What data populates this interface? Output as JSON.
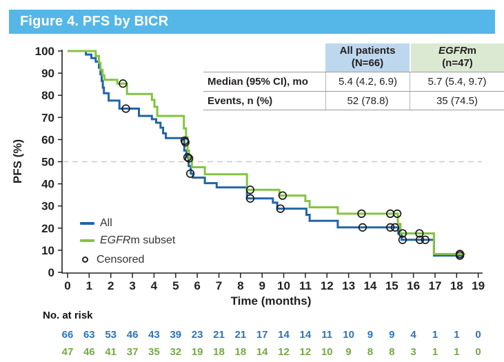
{
  "title_bar": {
    "text": "Figure 4. PFS by BICR"
  },
  "colors": {
    "title_bar_bg": "#55B7E7",
    "all_line": "#2265A7",
    "egfrm_line": "#84C341",
    "risk_all": "#2E74B5",
    "risk_egfrm": "#74A947",
    "header_blue_bg": "#BDD7EE",
    "header_green_bg": "#DCE9D2",
    "axis": "#231F20",
    "ref_line": "#c9c9c9"
  },
  "table": {
    "col1": {
      "line1": "All patients",
      "line2": "(N=66)"
    },
    "col2": {
      "italic": "EGFR",
      "rest": "m",
      "line2": "(n=47)"
    },
    "rows": [
      {
        "label": "Median (95% CI), mo",
        "v1": "5.4 (4.2, 6.9)",
        "v2": "5.7 (5.4, 9.7)"
      },
      {
        "label": "Events, n (%)",
        "v1": "52 (78.8)",
        "v2": "35 (74.5)"
      }
    ]
  },
  "legend": {
    "all": "All",
    "egfr_italic": "EGFR",
    "egfr_rest": "m subset",
    "censored": "Censored"
  },
  "risk_label": "No. at risk",
  "chart_data": {
    "type": "line",
    "subtype": "kaplan-meier-step",
    "title": "Figure 4. PFS by BICR",
    "xlabel": "Time (months)",
    "ylabel": "PFS (%)",
    "xlim": [
      0,
      19
    ],
    "ylim": [
      0,
      100
    ],
    "xticks": [
      0,
      1,
      2,
      3,
      4,
      5,
      6,
      7,
      8,
      9,
      10,
      11,
      12,
      13,
      14,
      15,
      16,
      17,
      18,
      19
    ],
    "yticks": [
      0,
      10,
      20,
      30,
      40,
      50,
      60,
      70,
      80,
      90,
      100
    ],
    "reference_line_y": 50,
    "grid": false,
    "legend_position": "lower-left",
    "series": [
      {
        "name": "All",
        "n": 66,
        "median_95ci_mo": "5.4 (4.2, 6.9)",
        "events_n_pct": "52 (78.8)",
        "color": "#2265A7",
        "t_end": 18.35,
        "steps": [
          [
            0,
            100
          ],
          [
            0.85,
            98.4
          ],
          [
            1.1,
            96.8
          ],
          [
            1.3,
            95.2
          ],
          [
            1.45,
            92.5
          ],
          [
            1.52,
            89.5
          ],
          [
            1.58,
            86.5
          ],
          [
            1.63,
            83.5
          ],
          [
            1.68,
            80.9
          ],
          [
            1.9,
            77.6
          ],
          [
            2.4,
            74.0
          ],
          [
            3.3,
            70.7
          ],
          [
            3.9,
            69.2
          ],
          [
            4.1,
            67.6
          ],
          [
            4.3,
            65.4
          ],
          [
            4.42,
            62.8
          ],
          [
            4.55,
            60.7
          ],
          [
            5.4,
            55.0
          ],
          [
            5.5,
            52.0
          ],
          [
            5.6,
            48.0
          ],
          [
            5.7,
            44.6
          ],
          [
            5.8,
            42.8
          ],
          [
            6.35,
            40.3
          ],
          [
            6.9,
            38.4
          ],
          [
            8.3,
            33.4
          ],
          [
            9.5,
            31.5
          ],
          [
            9.7,
            28.8
          ],
          [
            11.05,
            26.0
          ],
          [
            11.2,
            23.3
          ],
          [
            12.5,
            20.3
          ],
          [
            15.3,
            17.5
          ],
          [
            15.45,
            14.7
          ],
          [
            16.95,
            7.6
          ]
        ],
        "censors": [
          [
            2.7,
            74.0
          ],
          [
            5.42,
            59.5
          ],
          [
            5.55,
            52.0
          ],
          [
            5.68,
            44.6
          ],
          [
            8.45,
            33.4
          ],
          [
            9.85,
            28.8
          ],
          [
            13.65,
            20.3
          ],
          [
            14.93,
            20.3
          ],
          [
            15.15,
            20.3
          ],
          [
            15.5,
            14.7
          ],
          [
            16.3,
            14.7
          ],
          [
            16.55,
            14.7
          ],
          [
            18.15,
            7.6
          ]
        ]
      },
      {
        "name": "EGFRm subset",
        "n": 47,
        "median_95ci_mo": "5.7 (5.4, 9.7)",
        "events_n_pct": "35 (74.5)",
        "color": "#84C341",
        "t_end": 18.4,
        "steps": [
          [
            0,
            100
          ],
          [
            1.3,
            97.8
          ],
          [
            1.45,
            94.6
          ],
          [
            1.52,
            91.5
          ],
          [
            1.62,
            89.0
          ],
          [
            1.7,
            87.0
          ],
          [
            2.3,
            85.3
          ],
          [
            2.75,
            80.6
          ],
          [
            3.9,
            77.9
          ],
          [
            4.02,
            74.8
          ],
          [
            4.15,
            70.7
          ],
          [
            5.38,
            65.0
          ],
          [
            5.48,
            61.0
          ],
          [
            5.55,
            55.0
          ],
          [
            5.62,
            51.5
          ],
          [
            5.75,
            47.5
          ],
          [
            6.35,
            44.3
          ],
          [
            8.3,
            37.3
          ],
          [
            9.8,
            34.7
          ],
          [
            11.0,
            32.2
          ],
          [
            11.2,
            29.4
          ],
          [
            12.5,
            26.5
          ],
          [
            15.28,
            21.9
          ],
          [
            15.4,
            17.6
          ],
          [
            16.95,
            8.3
          ]
        ],
        "censors": [
          [
            2.56,
            85.3
          ],
          [
            5.45,
            58.8
          ],
          [
            5.62,
            51.5
          ],
          [
            8.45,
            37.3
          ],
          [
            9.95,
            34.7
          ],
          [
            13.6,
            26.5
          ],
          [
            14.93,
            26.5
          ],
          [
            15.25,
            26.5
          ],
          [
            15.5,
            17.6
          ],
          [
            16.28,
            17.6
          ],
          [
            18.15,
            8.3
          ]
        ]
      }
    ],
    "risk_table": {
      "label": "No. at risk",
      "times": [
        0,
        1,
        2,
        3,
        4,
        5,
        6,
        7,
        8,
        9,
        10,
        11,
        12,
        13,
        14,
        15,
        16,
        17,
        18,
        19
      ],
      "rows": [
        {
          "name": "All",
          "color": "#2E74B5",
          "values": [
            "66",
            "63",
            "53",
            "46",
            "43",
            "39",
            "23",
            "21",
            "21",
            "17",
            "14",
            "14",
            "11",
            "10",
            "9",
            "9",
            "4",
            "1",
            "1",
            "0"
          ]
        },
        {
          "name": "EGFRm subset",
          "color": "#74A947",
          "values": [
            "47",
            "46",
            "41",
            "37",
            "35",
            "32",
            "19",
            "18",
            "18",
            "14",
            "12",
            "12",
            "10",
            "9",
            "8",
            "8",
            "3",
            "1",
            "1",
            "0"
          ]
        }
      ]
    }
  }
}
